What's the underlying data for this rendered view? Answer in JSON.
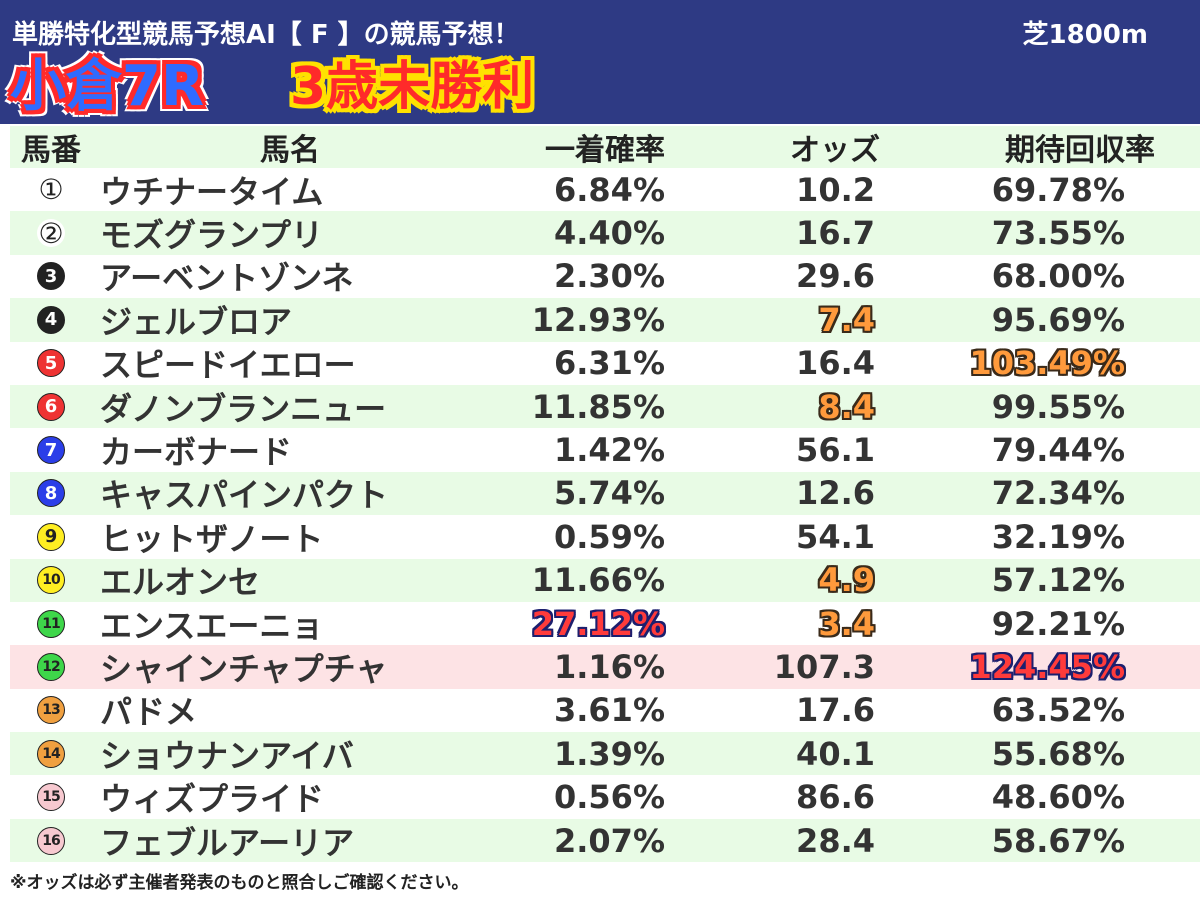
{
  "header": {
    "title": "単勝特化型競馬予想AI【 F 】の競馬予想！",
    "course": "芝1800m",
    "venue": "小倉7R",
    "race_class": "3歳未勝利"
  },
  "columns": {
    "num": "馬番",
    "name": "馬名",
    "prob": "一着確率",
    "odds": "オッズ",
    "ret": "期待回収率"
  },
  "rows": [
    {
      "num": "①",
      "name": "ウチナータイム",
      "prob": "6.84%",
      "odds": "10.2",
      "ret": "69.78%",
      "badge_bg": "#ffffff",
      "badge_fg": "#222222"
    },
    {
      "num": "②",
      "name": "モズグランプリ",
      "prob": "4.40%",
      "odds": "16.7",
      "ret": "73.55%",
      "badge_bg": "#ffffff",
      "badge_fg": "#222222"
    },
    {
      "num": "3",
      "name": "アーベントゾンネ",
      "prob": "2.30%",
      "odds": "29.6",
      "ret": "68.00%",
      "badge_bg": "#222222",
      "badge_fg": "#ffffff"
    },
    {
      "num": "4",
      "name": "ジェルブロア",
      "prob": "12.93%",
      "odds": "7.4",
      "ret": "95.69%",
      "badge_bg": "#222222",
      "badge_fg": "#ffffff",
      "odds_hl": "orange"
    },
    {
      "num": "5",
      "name": "スピードイエロー",
      "prob": "6.31%",
      "odds": "16.4",
      "ret": "103.49%",
      "badge_bg": "#ee3333",
      "badge_fg": "#ffffff",
      "ret_hl": "orange"
    },
    {
      "num": "6",
      "name": "ダノンブランニュー",
      "prob": "11.85%",
      "odds": "8.4",
      "ret": "99.55%",
      "badge_bg": "#ee3333",
      "badge_fg": "#ffffff",
      "odds_hl": "orange"
    },
    {
      "num": "7",
      "name": "カーボナード",
      "prob": "1.42%",
      "odds": "56.1",
      "ret": "79.44%",
      "badge_bg": "#2b3ee8",
      "badge_fg": "#ffffff"
    },
    {
      "num": "8",
      "name": "キャスパインパクト",
      "prob": "5.74%",
      "odds": "12.6",
      "ret": "72.34%",
      "badge_bg": "#2b3ee8",
      "badge_fg": "#ffffff"
    },
    {
      "num": "9",
      "name": "ヒットザノート",
      "prob": "0.59%",
      "odds": "54.1",
      "ret": "32.19%",
      "badge_bg": "#ffee22",
      "badge_fg": "#222222"
    },
    {
      "num": "10",
      "name": "エルオンセ",
      "prob": "11.66%",
      "odds": "4.9",
      "ret": "57.12%",
      "badge_bg": "#ffee22",
      "badge_fg": "#222222",
      "odds_hl": "orange"
    },
    {
      "num": "11",
      "name": "エンスエーニョ",
      "prob": "27.12%",
      "odds": "3.4",
      "ret": "92.21%",
      "badge_bg": "#3ed64a",
      "badge_fg": "#222222",
      "prob_hl": "red",
      "odds_hl": "orange"
    },
    {
      "num": "12",
      "name": "シャインチャプチャ",
      "prob": "1.16%",
      "odds": "107.3",
      "ret": "124.45%",
      "badge_bg": "#3ed64a",
      "badge_fg": "#222222",
      "ret_hl": "red",
      "highlight": true
    },
    {
      "num": "13",
      "name": "パドメ",
      "prob": "3.61%",
      "odds": "17.6",
      "ret": "63.52%",
      "badge_bg": "#f0a040",
      "badge_fg": "#222222"
    },
    {
      "num": "14",
      "name": "ショウナンアイバ",
      "prob": "1.39%",
      "odds": "40.1",
      "ret": "55.68%",
      "badge_bg": "#f0a040",
      "badge_fg": "#222222"
    },
    {
      "num": "15",
      "name": "ウィズプライド",
      "prob": "0.56%",
      "odds": "86.6",
      "ret": "48.60%",
      "badge_bg": "#f7c9d0",
      "badge_fg": "#222222"
    },
    {
      "num": "16",
      "name": "フェブルアーリア",
      "prob": "2.07%",
      "odds": "28.4",
      "ret": "58.67%",
      "badge_bg": "#f7c9d0",
      "badge_fg": "#222222"
    }
  ],
  "footer": {
    "note": "※オッズは必ず主催者発表のものと照合しご確認ください。"
  }
}
